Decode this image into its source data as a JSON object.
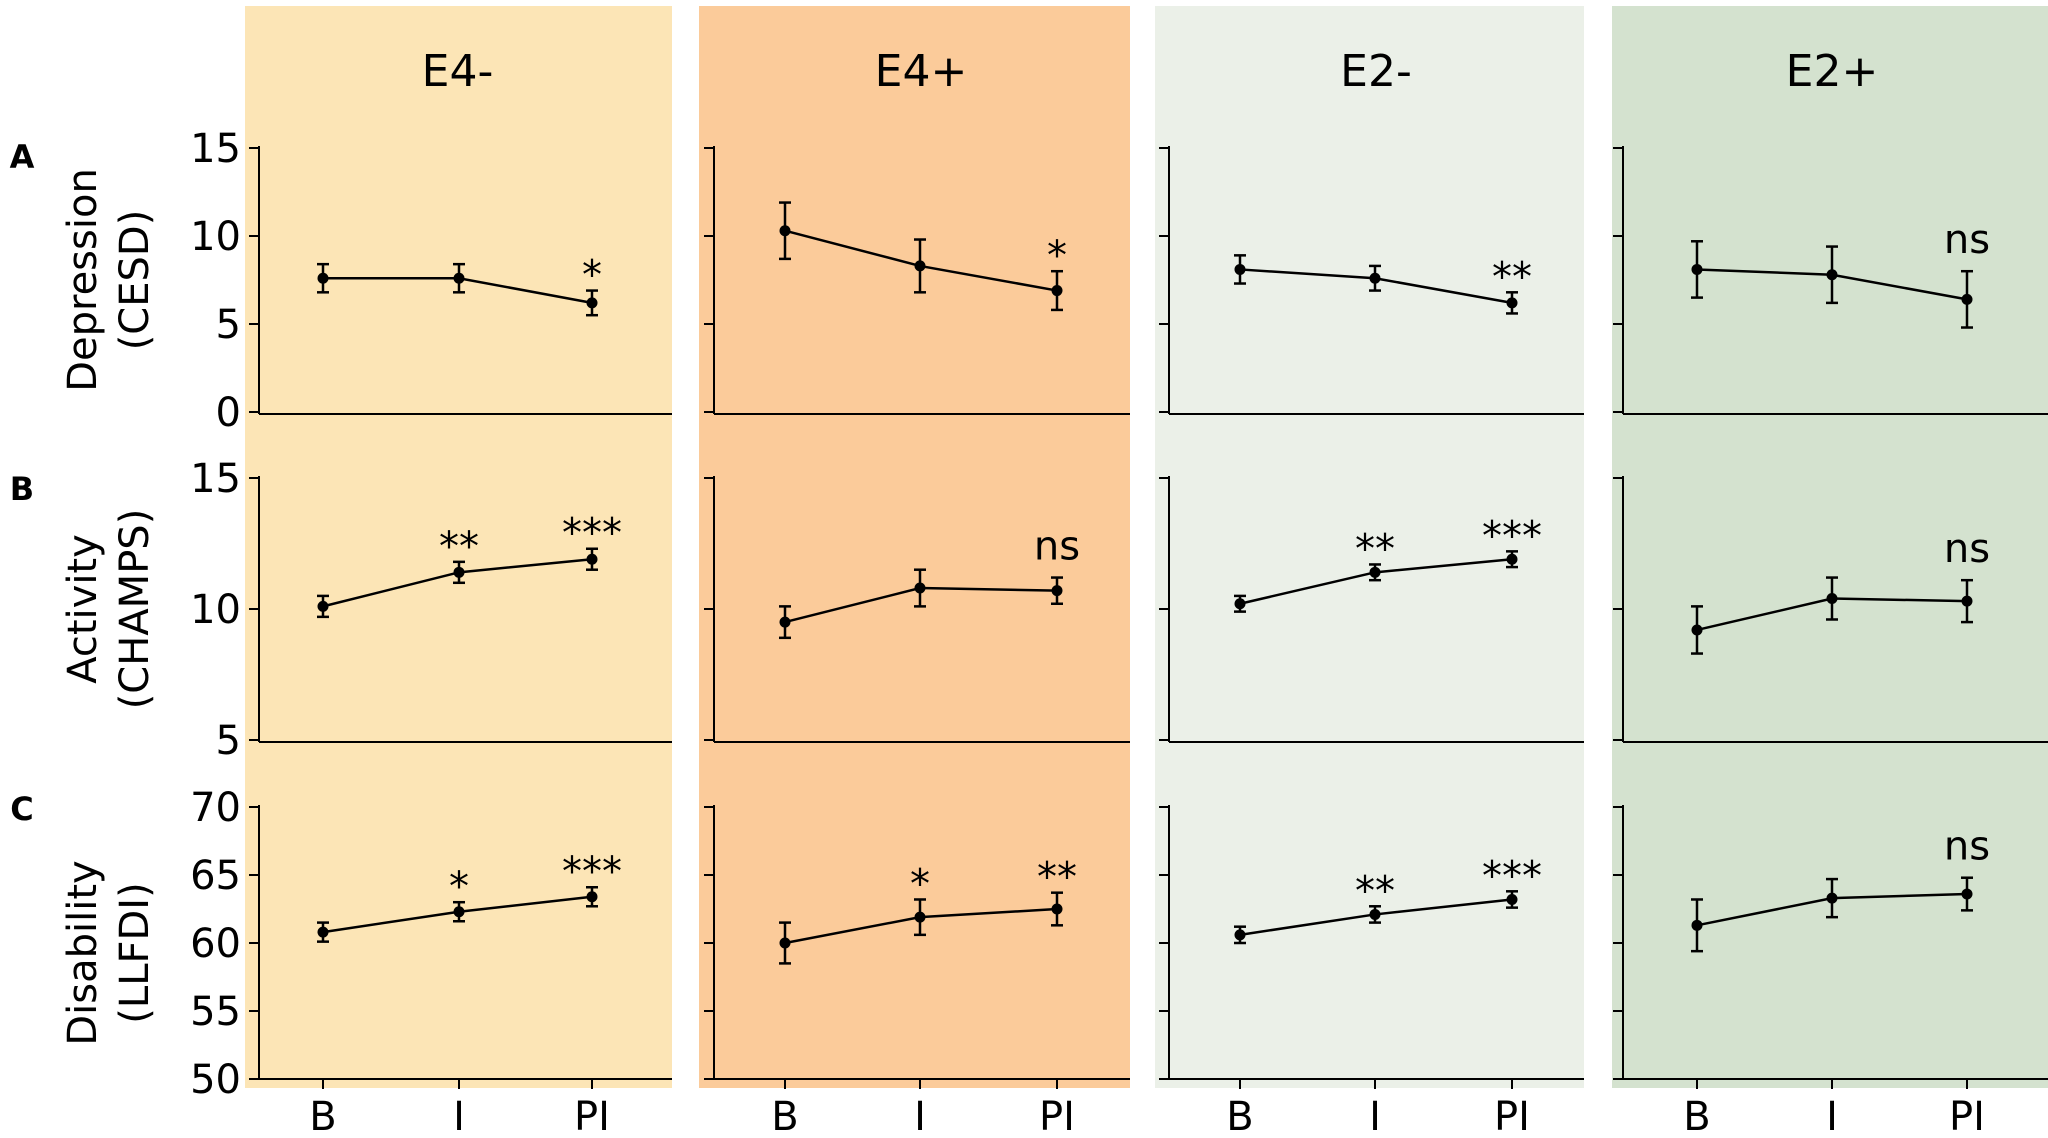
{
  "chart_data": {
    "type": "line",
    "panel_colors": [
      "#fce5b6",
      "#fbcb9a",
      "#ebf0e8",
      "#d4e2cf"
    ],
    "columns": [
      "E4-",
      "E4+",
      "E2-",
      "E2+"
    ],
    "categories": [
      "B",
      "I",
      "PI"
    ],
    "rows": [
      {
        "letter": "A",
        "ylabel": [
          "Depression",
          "(CESD)"
        ],
        "ylim": [
          0,
          15
        ],
        "yticks": [
          0,
          5,
          10,
          15
        ],
        "panels": [
          {
            "values": [
              7.6,
              7.6,
              6.2
            ],
            "err": [
              0.8,
              0.8,
              0.7
            ],
            "sig": "*"
          },
          {
            "values": [
              10.3,
              8.3,
              6.9
            ],
            "err": [
              1.6,
              1.5,
              1.1
            ],
            "sig": "*"
          },
          {
            "values": [
              8.1,
              7.6,
              6.2
            ],
            "err": [
              0.8,
              0.7,
              0.6
            ],
            "sig": "**"
          },
          {
            "values": [
              8.1,
              7.8,
              6.4
            ],
            "err": [
              1.6,
              1.6,
              1.6
            ],
            "sig": "ns"
          }
        ]
      },
      {
        "letter": "B",
        "ylabel": [
          "Activity",
          "(CHAMPS)"
        ],
        "ylim": [
          5,
          15
        ],
        "yticks": [
          5,
          10,
          15
        ],
        "panels": [
          {
            "values": [
              10.1,
              11.4,
              11.9
            ],
            "err": [
              0.4,
              0.4,
              0.4
            ],
            "sig": "**|***"
          },
          {
            "values": [
              9.5,
              10.8,
              10.7
            ],
            "err": [
              0.6,
              0.7,
              0.5
            ],
            "sig": "|ns"
          },
          {
            "values": [
              10.2,
              11.4,
              11.9
            ],
            "err": [
              0.3,
              0.3,
              0.3
            ],
            "sig": "**|***"
          },
          {
            "values": [
              9.2,
              10.4,
              10.3
            ],
            "err": [
              0.9,
              0.8,
              0.8
            ],
            "sig": "|ns"
          }
        ]
      },
      {
        "letter": "C",
        "ylabel": [
          "Disability",
          "(LLFDI)"
        ],
        "ylim": [
          50,
          70
        ],
        "yticks": [
          50,
          55,
          60,
          65,
          70
        ],
        "panels": [
          {
            "values": [
              60.8,
              62.3,
              63.4
            ],
            "err": [
              0.7,
              0.7,
              0.7
            ],
            "sig": "*|***"
          },
          {
            "values": [
              60.0,
              61.9,
              62.5
            ],
            "err": [
              1.5,
              1.3,
              1.2
            ],
            "sig": "*|**"
          },
          {
            "values": [
              60.6,
              62.1,
              63.2
            ],
            "err": [
              0.6,
              0.6,
              0.6
            ],
            "sig": "**|***"
          },
          {
            "values": [
              61.3,
              63.3,
              63.6
            ],
            "err": [
              1.9,
              1.4,
              1.2
            ],
            "sig": "|ns"
          }
        ]
      }
    ]
  }
}
